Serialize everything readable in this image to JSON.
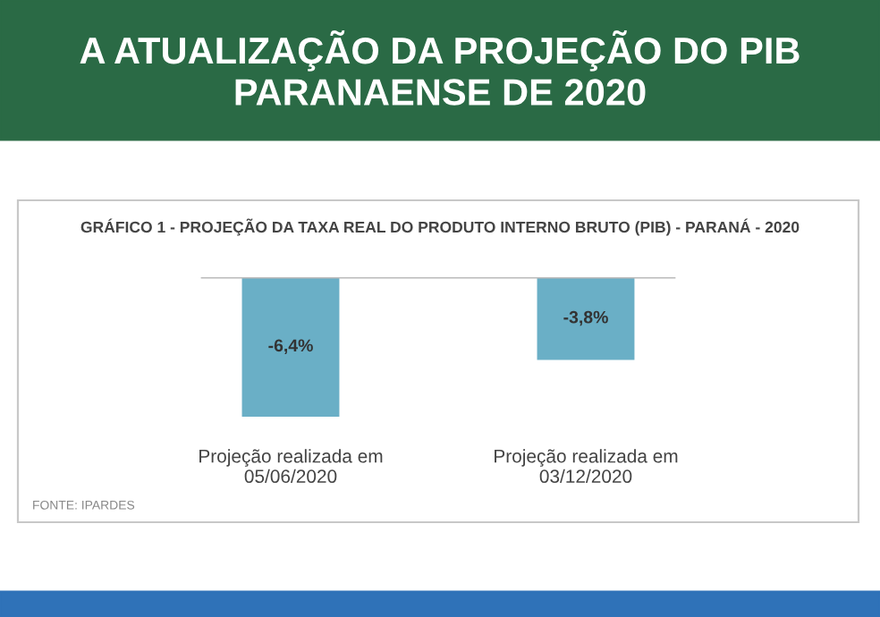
{
  "chart_data": {
    "type": "bar",
    "title": "A ATUALIZAÇÃO DA PROJEÇÃO DO PIB PARANAENSE DE 2020",
    "subtitle": "GRÁFICO 1 - PROJEÇÃO DA TAXA REAL DO PRODUTO INTERNO BRUTO (PIB) - PARANÁ - 2020",
    "categories": [
      "Projeção realizada em\n05/06/2020",
      "Projeção realizada em\n03/12/2020"
    ],
    "values": [
      -6.4,
      -3.8
    ],
    "color": "#6aafc6",
    "value_labels": [
      "-6,4%",
      "-3,8%"
    ],
    "annotations": [
      "FONTE: IPARDES"
    ],
    "grid": false,
    "legend": false
  }
}
